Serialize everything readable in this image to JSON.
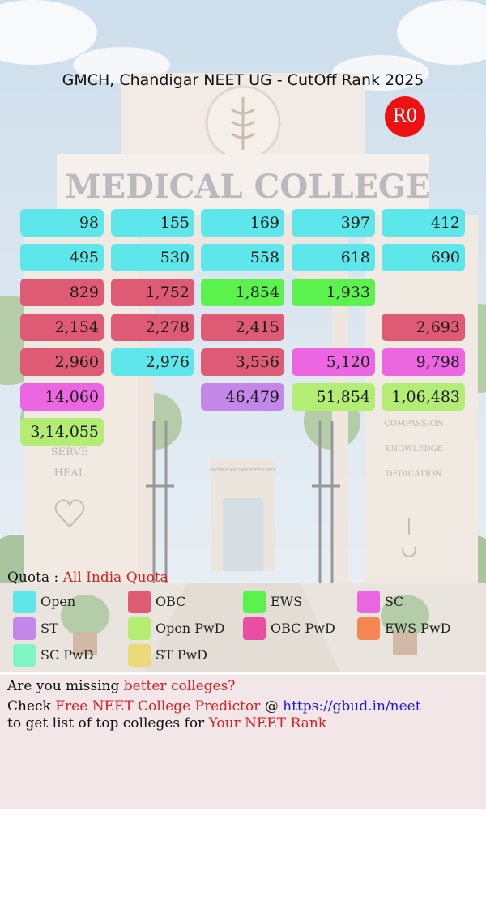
{
  "header": {
    "title": "GMCH, Chandigar NEET UG - CutOff Rank 2025",
    "round_badge": "R0",
    "round_color": "#ee1111"
  },
  "background": {
    "sign_text": "MEDICAL COLLEGE",
    "left_pillar": [
      "SERVE",
      "HEAL"
    ],
    "right_pillar": [
      "COMPASSION",
      "KNOWLEDGE",
      "DEDICATION"
    ],
    "building_sign": "KNOWLEDGE CARE EXCELLENCE"
  },
  "category_colors": {
    "open": "#5ee7ea",
    "obc": "#df5a74",
    "ews": "#5cf24e",
    "sc": "#ec66e2",
    "st": "#c287e8",
    "open_pwd": "#b3ed74",
    "obc_pwd": "#ea4ea2",
    "ews_pwd": "#f48752",
    "sc_pwd": "#7ff5c4",
    "st_pwd": "#ecd97a"
  },
  "rows": [
    [
      {
        "value": "98",
        "category": "open"
      },
      {
        "value": "155",
        "category": "open"
      },
      {
        "value": "169",
        "category": "open"
      },
      {
        "value": "397",
        "category": "open"
      },
      {
        "value": "412",
        "category": "open"
      }
    ],
    [
      {
        "value": "495",
        "category": "open"
      },
      {
        "value": "530",
        "category": "open"
      },
      {
        "value": "558",
        "category": "open"
      },
      {
        "value": "618",
        "category": "open"
      },
      {
        "value": "690",
        "category": "open"
      }
    ],
    [
      {
        "value": "829",
        "category": "obc"
      },
      {
        "value": "1,752",
        "category": "obc"
      },
      {
        "value": "1,854",
        "category": "ews"
      },
      {
        "value": "1,933",
        "category": "ews"
      },
      null
    ],
    [
      {
        "value": "2,154",
        "category": "obc"
      },
      {
        "value": "2,278",
        "category": "obc"
      },
      {
        "value": "2,415",
        "category": "obc"
      },
      null,
      {
        "value": "2,693",
        "category": "obc"
      }
    ],
    [
      {
        "value": "2,960",
        "category": "obc"
      },
      {
        "value": "2,976",
        "category": "open"
      },
      {
        "value": "3,556",
        "category": "obc"
      },
      {
        "value": "5,120",
        "category": "sc"
      },
      {
        "value": "9,798",
        "category": "sc"
      }
    ],
    [
      {
        "value": "14,060",
        "category": "sc"
      },
      null,
      {
        "value": "46,479",
        "category": "st"
      },
      {
        "value": "51,854",
        "category": "open_pwd"
      },
      {
        "value": "1,06,483",
        "category": "open_pwd"
      }
    ],
    [
      {
        "value": "3,14,055",
        "category": "open_pwd"
      },
      null,
      null,
      null,
      null
    ]
  ],
  "quota": {
    "label": "Quota :",
    "value": "All India Quota"
  },
  "legend": [
    {
      "label": "Open",
      "category": "open"
    },
    {
      "label": "OBC",
      "category": "obc"
    },
    {
      "label": "EWS",
      "category": "ews"
    },
    {
      "label": "SC",
      "category": "sc"
    },
    {
      "label": "ST",
      "category": "st"
    },
    {
      "label": "Open PwD",
      "category": "open_pwd"
    },
    {
      "label": "OBC PwD",
      "category": "obc_pwd"
    },
    {
      "label": "EWS PwD",
      "category": "ews_pwd"
    },
    {
      "label": "SC PwD",
      "category": "sc_pwd"
    },
    {
      "label": "ST PwD",
      "category": "st_pwd"
    }
  ],
  "promo": {
    "line1_prefix": "Are you missing ",
    "line1_highlight": "better colleges?",
    "line2_prefix": "Check ",
    "line2_link": "Free NEET College Predictor",
    "line2_at": " @ ",
    "line2_url": "https://gbud.in/neet",
    "line3_prefix": "to get list of top colleges for ",
    "line3_highlight": "Your NEET Rank"
  }
}
